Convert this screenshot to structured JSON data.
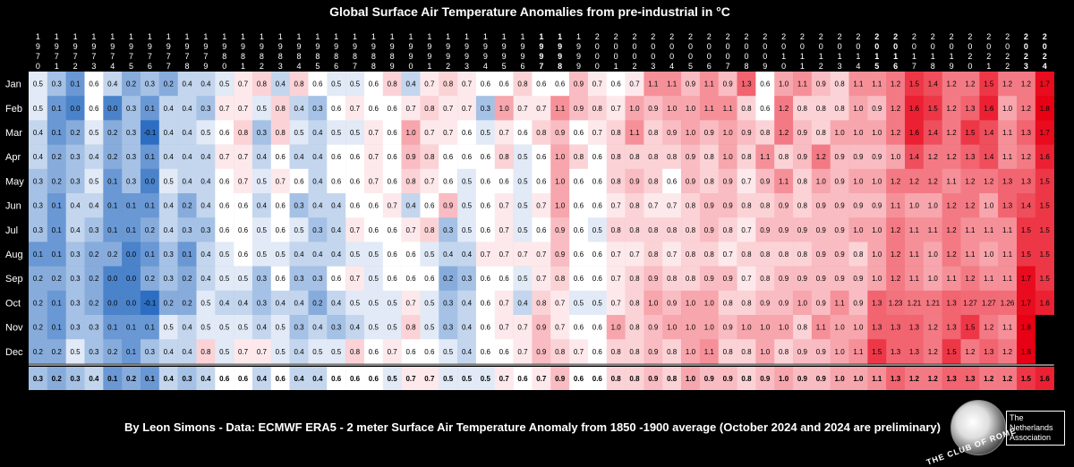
{
  "chart_data": {
    "type": "heatmap",
    "title": "Global Surface Air Temperature Anomalies from pre-industrial in °C",
    "xlabel": "",
    "ylabel": "",
    "years": [
      1970,
      1971,
      1972,
      1973,
      1974,
      1975,
      1976,
      1977,
      1978,
      1979,
      1980,
      1981,
      1982,
      1983,
      1984,
      1985,
      1986,
      1987,
      1988,
      1989,
      1990,
      1991,
      1992,
      1993,
      1994,
      1995,
      1996,
      1997,
      1998,
      1999,
      2000,
      2001,
      2002,
      2003,
      2004,
      2005,
      2006,
      2007,
      2008,
      2009,
      2010,
      2011,
      2012,
      2013,
      2014,
      2015,
      2016,
      2017,
      2018,
      2019,
      2020,
      2021,
      2022,
      2023,
      2024
    ],
    "bold_years": [
      1997,
      1998,
      2015,
      2016,
      2023,
      2024
    ],
    "months": [
      "Jan",
      "Feb",
      "Mar",
      "Apr",
      "May",
      "Jun",
      "Jul",
      "Aug",
      "Sep",
      "Oct",
      "Nov",
      "Dec"
    ],
    "values": [
      [
        0.5,
        0.3,
        0.1,
        0.6,
        0.4,
        0.2,
        0.3,
        0.2,
        0.4,
        0.4,
        0.5,
        0.7,
        0.8,
        0.4,
        0.8,
        0.6,
        0.5,
        0.5,
        0.6,
        0.8,
        0.4,
        0.7,
        0.8,
        0.7,
        0.6,
        0.6,
        0.8,
        0.6,
        0.6,
        0.9,
        0.7,
        0.6,
        0.7,
        1.1,
        1.1,
        0.9,
        1.1,
        0.9,
        1.3,
        0.6,
        1.0,
        1.1,
        0.9,
        0.8,
        1.1,
        1.1,
        1.2,
        1.5,
        1.4,
        1.2,
        1.2,
        1.5,
        1.2,
        1.2,
        1.7
      ],
      [
        0.5,
        0.1,
        0.0,
        0.6,
        0.0,
        0.3,
        0.1,
        0.4,
        0.4,
        0.3,
        0.7,
        0.7,
        0.5,
        0.8,
        0.4,
        0.3,
        0.6,
        0.7,
        0.6,
        0.6,
        0.7,
        0.8,
        0.7,
        0.7,
        0.3,
        1.0,
        0.7,
        0.7,
        1.1,
        0.9,
        0.8,
        0.7,
        1.0,
        0.9,
        1.0,
        1.0,
        1.1,
        1.1,
        0.8,
        0.6,
        1.2,
        0.8,
        0.8,
        0.8,
        1.0,
        0.9,
        1.2,
        1.6,
        1.5,
        1.2,
        1.3,
        1.6,
        1.0,
        1.2,
        1.8
      ],
      [
        0.4,
        0.1,
        0.2,
        0.5,
        0.2,
        0.3,
        -0.1,
        0.4,
        0.4,
        0.5,
        0.6,
        0.8,
        0.3,
        0.8,
        0.5,
        0.4,
        0.5,
        0.5,
        0.7,
        0.6,
        1.0,
        0.7,
        0.7,
        0.6,
        0.5,
        0.7,
        0.6,
        0.8,
        0.9,
        0.6,
        0.7,
        0.8,
        1.1,
        0.8,
        0.9,
        1.0,
        0.9,
        1.0,
        0.9,
        0.8,
        1.2,
        0.9,
        0.8,
        1.0,
        1.0,
        1.0,
        1.2,
        1.6,
        1.4,
        1.2,
        1.5,
        1.4,
        1.1,
        1.3,
        1.7
      ],
      [
        0.4,
        0.2,
        0.3,
        0.4,
        0.2,
        0.3,
        0.1,
        0.4,
        0.4,
        0.4,
        0.7,
        0.7,
        0.4,
        0.6,
        0.4,
        0.4,
        0.6,
        0.6,
        0.7,
        0.6,
        0.9,
        0.8,
        0.6,
        0.6,
        0.6,
        0.8,
        0.5,
        0.6,
        1.0,
        0.8,
        0.6,
        0.8,
        0.8,
        0.8,
        0.8,
        0.9,
        0.8,
        1.0,
        0.8,
        1.1,
        0.8,
        0.9,
        1.2,
        0.9,
        0.9,
        0.9,
        1.0,
        1.4,
        1.2,
        1.2,
        1.3,
        1.4,
        1.1,
        1.2,
        1.6
      ],
      [
        0.3,
        0.2,
        0.3,
        0.5,
        0.1,
        0.3,
        0.0,
        0.5,
        0.4,
        0.4,
        0.6,
        0.7,
        0.5,
        0.7,
        0.6,
        0.4,
        0.6,
        0.6,
        0.7,
        0.6,
        0.8,
        0.7,
        0.6,
        0.5,
        0.6,
        0.6,
        0.5,
        0.6,
        1.0,
        0.6,
        0.6,
        0.8,
        0.9,
        0.8,
        0.6,
        0.9,
        0.8,
        0.9,
        0.7,
        0.9,
        1.1,
        0.8,
        1.0,
        0.9,
        1.0,
        1.0,
        1.2,
        1.2,
        1.2,
        1.1,
        1.2,
        1.2,
        1.3,
        1.3,
        1.5
      ],
      [
        0.3,
        0.1,
        0.4,
        0.4,
        0.1,
        0.1,
        0.1,
        0.4,
        0.2,
        0.4,
        0.6,
        0.6,
        0.4,
        0.6,
        0.3,
        0.4,
        0.4,
        0.6,
        0.6,
        0.7,
        0.4,
        0.6,
        0.9,
        0.5,
        0.6,
        0.7,
        0.5,
        0.7,
        1.0,
        0.6,
        0.6,
        0.7,
        0.8,
        0.7,
        0.7,
        0.8,
        0.9,
        0.9,
        0.8,
        0.8,
        0.9,
        0.8,
        0.9,
        0.9,
        0.9,
        0.9,
        1.1,
        1.0,
        1.0,
        1.2,
        1.2,
        1.0,
        1.3,
        1.4,
        1.5
      ],
      [
        0.3,
        0.1,
        0.4,
        0.3,
        0.1,
        0.1,
        0.2,
        0.4,
        0.3,
        0.3,
        0.6,
        0.6,
        0.5,
        0.6,
        0.5,
        0.3,
        0.4,
        0.7,
        0.6,
        0.6,
        0.7,
        0.8,
        0.3,
        0.5,
        0.6,
        0.7,
        0.5,
        0.6,
        0.9,
        0.6,
        0.5,
        0.8,
        0.8,
        0.8,
        0.8,
        0.8,
        0.9,
        0.8,
        0.7,
        0.9,
        0.9,
        0.9,
        0.9,
        0.9,
        1.0,
        1.0,
        1.2,
        1.1,
        1.1,
        1.2,
        1.1,
        1.1,
        1.1,
        1.5,
        1.5
      ],
      [
        0.1,
        0.1,
        0.3,
        0.2,
        0.2,
        0.0,
        0.1,
        0.3,
        0.1,
        0.4,
        0.5,
        0.6,
        0.5,
        0.5,
        0.4,
        0.4,
        0.4,
        0.5,
        0.5,
        0.6,
        0.6,
        0.5,
        0.4,
        0.4,
        0.7,
        0.7,
        0.7,
        0.7,
        0.9,
        0.6,
        0.6,
        0.7,
        0.7,
        0.8,
        0.7,
        0.8,
        0.8,
        0.7,
        0.8,
        0.8,
        0.8,
        0.8,
        0.9,
        0.9,
        0.8,
        1.0,
        1.2,
        1.1,
        1.0,
        1.2,
        1.1,
        1.0,
        1.1,
        1.5,
        1.5
      ],
      [
        0.2,
        0.2,
        0.3,
        0.2,
        0.0,
        0.0,
        0.2,
        0.3,
        0.2,
        0.4,
        0.5,
        0.5,
        0.3,
        0.6,
        0.3,
        0.3,
        0.6,
        0.7,
        0.5,
        0.6,
        0.6,
        0.6,
        0.2,
        0.3,
        0.6,
        0.6,
        0.5,
        0.7,
        0.8,
        0.6,
        0.6,
        0.7,
        0.8,
        0.9,
        0.8,
        0.8,
        0.9,
        0.9,
        0.7,
        0.8,
        0.9,
        0.9,
        0.9,
        0.9,
        0.9,
        1.0,
        1.2,
        1.1,
        1.0,
        1.1,
        1.2,
        1.1,
        1.1,
        1.7,
        1.5
      ],
      [
        0.2,
        0.1,
        0.3,
        0.2,
        0.0,
        0.0,
        -0.1,
        0.2,
        0.2,
        0.5,
        0.4,
        0.4,
        0.3,
        0.4,
        0.4,
        0.2,
        0.4,
        0.5,
        0.5,
        0.5,
        0.7,
        0.5,
        0.3,
        0.4,
        0.6,
        0.7,
        0.4,
        0.8,
        0.7,
        0.5,
        0.5,
        0.7,
        0.8,
        1.0,
        0.9,
        1.0,
        1.0,
        0.8,
        0.8,
        0.9,
        0.9,
        1.0,
        0.9,
        1.1,
        0.9,
        1.3,
        1.23,
        1.21,
        1.21,
        1.3,
        1.27,
        1.27,
        1.26,
        1.7,
        1.6
      ],
      [
        0.2,
        0.1,
        0.3,
        0.3,
        0.1,
        0.1,
        0.1,
        0.5,
        0.4,
        0.5,
        0.5,
        0.5,
        0.4,
        0.5,
        0.3,
        0.4,
        0.3,
        0.4,
        0.5,
        0.5,
        0.8,
        0.5,
        0.3,
        0.4,
        0.6,
        0.7,
        0.7,
        0.9,
        0.7,
        0.6,
        0.6,
        1.0,
        0.8,
        0.9,
        1.0,
        1.0,
        1.0,
        0.9,
        1.0,
        1.0,
        1.0,
        0.8,
        1.1,
        1.0,
        1.0,
        1.3,
        1.3,
        1.3,
        1.2,
        1.3,
        1.5,
        1.2,
        1.1,
        1.8,
        null
      ],
      [
        0.2,
        0.2,
        0.5,
        0.3,
        0.2,
        0.1,
        0.3,
        0.4,
        0.4,
        0.8,
        0.5,
        0.7,
        0.7,
        0.5,
        0.4,
        0.5,
        0.5,
        0.8,
        0.6,
        0.7,
        0.6,
        0.6,
        0.5,
        0.4,
        0.6,
        0.6,
        0.7,
        0.9,
        0.8,
        0.7,
        0.6,
        0.8,
        0.8,
        0.9,
        0.8,
        1.0,
        1.1,
        0.8,
        0.8,
        1.0,
        0.8,
        0.9,
        0.9,
        1.0,
        1.1,
        1.5,
        1.3,
        1.3,
        1.2,
        1.5,
        1.2,
        1.3,
        1.2,
        1.8,
        null
      ]
    ],
    "annual": [
      0.3,
      0.2,
      0.3,
      0.4,
      0.1,
      0.2,
      0.1,
      0.4,
      0.3,
      0.4,
      0.6,
      0.6,
      0.4,
      0.6,
      0.4,
      0.4,
      0.6,
      0.6,
      0.6,
      0.5,
      0.7,
      0.7,
      0.5,
      0.5,
      0.5,
      0.7,
      0.6,
      0.7,
      0.9,
      0.6,
      0.6,
      0.8,
      0.8,
      0.9,
      0.8,
      1.0,
      0.9,
      0.9,
      0.8,
      0.9,
      1.0,
      0.9,
      0.9,
      1.0,
      1.0,
      1.1,
      1.3,
      1.2,
      1.2,
      1.3,
      1.3,
      1.2,
      1.2,
      1.5,
      1.6
    ]
  },
  "credit": "By Leon Simons - Data: ECMWF ERA5 - 2 meter Surface Air Temperature Anomaly from 1850 -1900 average (October 2024 and 2024 are preliminary)",
  "logo": {
    "ring_text": "THE CLUB OF ROME",
    "box_line1": "The Netherlands",
    "box_line2": "Association"
  },
  "colors": {
    "background": "#000000",
    "cold": "#2166c4",
    "neutral": "#ffffff",
    "warm": "#e8001a"
  }
}
